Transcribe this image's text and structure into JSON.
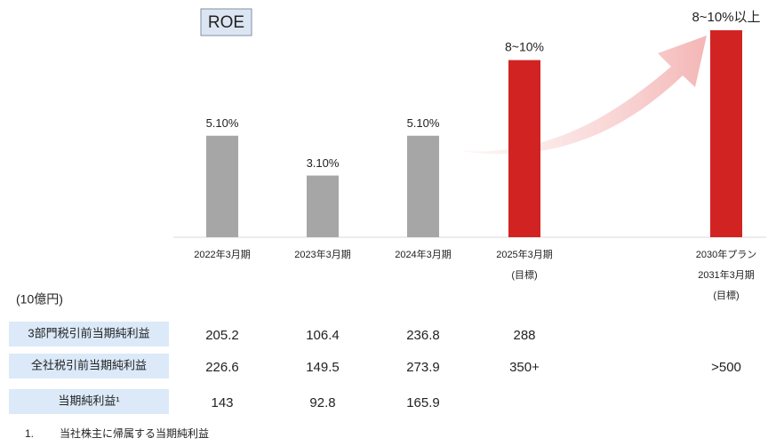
{
  "chart_data": {
    "type": "bar",
    "title": "ROE",
    "categories": [
      [
        "2022年3月期"
      ],
      [
        "2023年3月期"
      ],
      [
        "2024年3月期"
      ],
      [
        "2025年3月期",
        "(目標)"
      ],
      [
        "2030年プラン",
        "2031年3月期",
        "(目標)"
      ]
    ],
    "values": [
      5.1,
      3.1,
      5.1,
      8.9,
      10.4
    ],
    "value_labels": [
      "5.10%",
      "3.10%",
      "5.10%",
      "8~10%",
      "8~10%以上"
    ],
    "colors": [
      "#a6a6a6",
      "#a6a6a6",
      "#a6a6a6",
      "#d22323",
      "#d22323"
    ]
  },
  "table": {
    "unit": "(10億円)",
    "rows": [
      {
        "label": "3部門税引前当期純利益",
        "cells": [
          205.2,
          106.4,
          236.8,
          288
        ]
      },
      {
        "label": "全社税引前当期純利益",
        "cells": [
          226.6,
          149.5,
          273.9,
          "350+",
          ">500"
        ]
      },
      {
        "label": "当期純利益¹",
        "cells": [
          143,
          92.8,
          165.9
        ]
      }
    ]
  },
  "footnote": {
    "number": "1.",
    "text": "当社株主に帰属する当期純利益"
  }
}
